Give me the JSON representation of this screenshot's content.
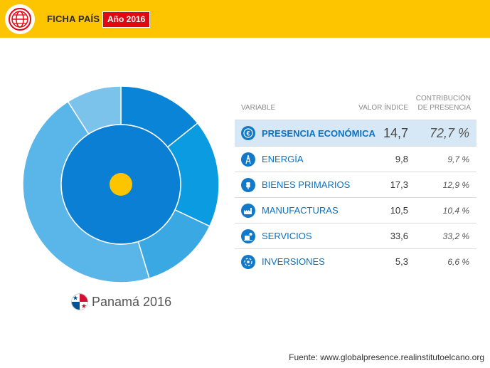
{
  "header": {
    "title": "FICHA PAÍS",
    "year_badge": "Año 2016",
    "logo_icon": "globe-icon"
  },
  "country": {
    "name": "Panamá 2016",
    "flag_icon": "panama-flag-icon"
  },
  "table": {
    "headers": {
      "variable": "VARIABLE",
      "index": "VALOR ÍNDICE",
      "contribution_line1": "CONTRIBUCIÓN",
      "contribution_line2": "DE PRESENCIA"
    },
    "rows": [
      {
        "label": "PRESENCIA ECONÓMICA",
        "index": "14,7",
        "contribution": "72,7 %",
        "icon": "euro-icon",
        "highlighted": true
      },
      {
        "label": "ENERGÍA",
        "index": "9,8",
        "contribution": "9,7 %",
        "icon": "oil-derrick-icon",
        "highlighted": false
      },
      {
        "label": "BIENES PRIMARIOS",
        "index": "17,3",
        "contribution": "12,9 %",
        "icon": "wheat-icon",
        "highlighted": false
      },
      {
        "label": "MANUFACTURAS",
        "index": "10,5",
        "contribution": "10,4 %",
        "icon": "factory-icon",
        "highlighted": false
      },
      {
        "label": "SERVICIOS",
        "index": "33,6",
        "contribution": "33,2 %",
        "icon": "services-icon",
        "highlighted": false
      },
      {
        "label": "INVERSIONES",
        "index": "5,3",
        "contribution": "6,6 %",
        "icon": "investment-icon",
        "highlighted": false
      }
    ]
  },
  "footer": {
    "source": "Fuente: www.globalpresence.realinstitutoelcano.org"
  },
  "colors": {
    "topbar": "#fdc400",
    "badge": "#e30613",
    "inner_ring": "#0a7fd3",
    "center_dot": "#fdc400",
    "outer_segments": [
      "#0a84d6",
      "#0a9be0",
      "#3aa9e3",
      "#5ab5e8",
      "#7cc3ec"
    ]
  },
  "chart_data": {
    "type": "pie",
    "inner_ring": {
      "name": "PRESENCIA ECONÓMICA",
      "value": 72.7
    },
    "outer_ring": {
      "labels": [
        "ENERGÍA",
        "BIENES PRIMARIOS",
        "MANUFACTURAS",
        "SERVICIOS",
        "INVERSIONES"
      ],
      "values": [
        9.7,
        12.9,
        10.4,
        33.2,
        6.6
      ],
      "order_clockwise_from_top": [
        "MANUFACTURAS",
        "BIENES PRIMARIOS",
        "ENERGÍA",
        "SERVICIOS",
        "INVERSIONES"
      ]
    }
  }
}
